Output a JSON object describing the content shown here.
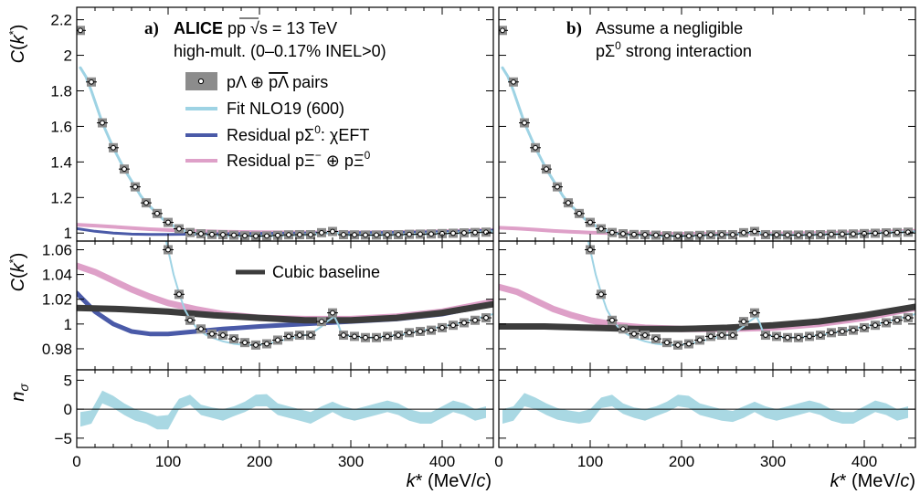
{
  "chart_data": {
    "type": "line",
    "x_axis": {
      "label": "k* (MeV/c)",
      "label_parts": [
        "k",
        "*",
        " (MeV/",
        "c",
        ")"
      ],
      "range": [
        0,
        456
      ],
      "ticks": [
        0,
        100,
        200,
        300,
        400
      ]
    },
    "panel_labels": {
      "a": {
        "letter": "a)",
        "line1_bold": "ALICE",
        "line1_rest": " pp ",
        "sqrt_s": "√s",
        "energy": " = 13 TeV",
        "line2": "high-mult. (0–0.17% INEL>0)"
      },
      "b": {
        "letter": "b)",
        "line1": "Assume a negligible",
        "line2_pre": "pΣ",
        "line2_sup": "0",
        "line2_post": " strong interaction"
      }
    },
    "legend": {
      "data": {
        "label": "pΛ ⊕ pΛ pairs",
        "prefix": "pΛ ⊕ ",
        "bar": "pΛ",
        "suffix": " pairs"
      },
      "fit": {
        "label": "Fit NLO19 (600)"
      },
      "res_sigma": {
        "label": "Residual pΣ0: χEFT",
        "pre": "Residual pΣ",
        "sup": "0",
        "post": ": χEFT"
      },
      "res_xi": {
        "label": "Residual pΞ− ⊕ pΞ0",
        "pre": "Residual pΞ",
        "sup1": "−",
        "mid": " ⊕ pΞ",
        "sup2": "0"
      },
      "baseline": {
        "label": "Cubic baseline"
      }
    },
    "colors": {
      "fit": "#9ed3e4",
      "res_sigma": "#4a5aa8",
      "res_xi": "#dea0c8",
      "baseline": "#3c3c3c",
      "sys_box": "#8c8c8c",
      "nsigma_band": "#a9d8e3"
    },
    "rows": {
      "top": {
        "ylabel": "C(k*)",
        "ylabel_parts": [
          "C",
          "(",
          "k",
          "*",
          ")"
        ],
        "ylim": [
          0.955,
          2.27
        ],
        "ytick_values": [
          1,
          1.2,
          1.4,
          1.6,
          1.8,
          2,
          2.2
        ],
        "ytick_labels": [
          "1",
          "1.2",
          "1.4",
          "1.6",
          "1.8",
          "2",
          "2.2"
        ]
      },
      "mid": {
        "ylabel": "C(k*)",
        "ylabel_parts": [
          "C",
          "(",
          "k",
          "*",
          ")"
        ],
        "ylim": [
          0.963,
          1.067
        ],
        "ytick_values": [
          0.98,
          1,
          1.02,
          1.04,
          1.06
        ],
        "ytick_labels": [
          "0.98",
          "1",
          "1.02",
          "1.04",
          "1.06"
        ]
      },
      "bot": {
        "ylabel": "nσ",
        "ylabel_parts": [
          "n",
          "σ"
        ],
        "ylim": [
          -6.6,
          6.8
        ],
        "ytick_values": [
          -5,
          0,
          5
        ],
        "ytick_labels": [
          "−5",
          "0",
          "5"
        ]
      }
    },
    "data_points": {
      "x": [
        4,
        16,
        28,
        40,
        52,
        64,
        76,
        88,
        100,
        112,
        124,
        136,
        148,
        160,
        172,
        184,
        196,
        208,
        220,
        232,
        244,
        256,
        268,
        280,
        292,
        304,
        316,
        328,
        340,
        352,
        364,
        376,
        388,
        400,
        412,
        424,
        436,
        448
      ],
      "y": [
        2.14,
        1.85,
        1.62,
        1.48,
        1.36,
        1.26,
        1.17,
        1.11,
        1.06,
        1.024,
        1.003,
        0.996,
        0.992,
        0.991,
        0.988,
        0.985,
        0.983,
        0.984,
        0.987,
        0.99,
        0.991,
        0.991,
        1.002,
        1.009,
        0.991,
        0.99,
        0.989,
        0.989,
        0.99,
        0.991,
        0.993,
        0.994,
        0.995,
        0.997,
        0.999,
        1.001,
        1.003,
        1.005
      ]
    },
    "fit_curve": {
      "x": [
        4,
        10,
        16,
        22,
        28,
        34,
        40,
        46,
        52,
        58,
        64,
        70,
        76,
        82,
        88,
        94,
        100,
        106,
        112,
        118,
        124,
        130,
        136,
        142,
        148,
        160,
        172,
        184,
        196,
        208,
        220,
        232,
        244,
        256,
        268,
        272,
        278,
        282,
        286,
        290,
        300,
        320,
        340,
        360,
        380,
        400,
        420,
        440,
        456
      ],
      "y": [
        1.93,
        1.88,
        1.8,
        1.71,
        1.62,
        1.55,
        1.48,
        1.42,
        1.36,
        1.31,
        1.26,
        1.21,
        1.17,
        1.14,
        1.11,
        1.08,
        1.06,
        1.04,
        1.025,
        1.012,
        1.004,
        0.998,
        0.994,
        0.991,
        0.989,
        0.986,
        0.984,
        0.983,
        0.983,
        0.984,
        0.986,
        0.988,
        0.99,
        0.992,
        0.998,
        1.001,
        1.004,
        1.006,
        1.0,
        0.992,
        0.99,
        0.989,
        0.99,
        0.992,
        0.995,
        0.998,
        1.001,
        1.005,
        1.008
      ]
    },
    "panels": {
      "a": {
        "res_sigma": {
          "x": [
            0,
            20,
            40,
            60,
            80,
            100,
            130,
            160,
            200,
            250,
            300,
            350,
            400,
            456
          ],
          "y": [
            1.025,
            1.01,
            1.0,
            0.994,
            0.992,
            0.992,
            0.994,
            0.996,
            0.998,
            1.0,
            1.002,
            1.004,
            1.008,
            1.016
          ]
        },
        "res_xi": {
          "x": [
            0,
            20,
            40,
            60,
            80,
            100,
            130,
            160,
            200,
            250,
            300,
            350,
            400,
            456
          ],
          "y": [
            1.047,
            1.042,
            1.035,
            1.028,
            1.022,
            1.017,
            1.012,
            1.008,
            1.005,
            1.004,
            1.004,
            1.006,
            1.01,
            1.018
          ]
        },
        "baseline": {
          "x": [
            0,
            50,
            100,
            150,
            200,
            250,
            300,
            350,
            400,
            456
          ],
          "y": [
            1.013,
            1.012,
            1.01,
            1.007,
            1.005,
            1.003,
            1.003,
            1.005,
            1.009,
            1.016
          ]
        },
        "nsigma": {
          "x": [
            4,
            16,
            28,
            40,
            52,
            64,
            76,
            88,
            100,
            112,
            124,
            136,
            148,
            160,
            172,
            184,
            196,
            208,
            220,
            232,
            244,
            256,
            268,
            280,
            292,
            304,
            316,
            328,
            340,
            352,
            364,
            376,
            388,
            400,
            412,
            424,
            436,
            448
          ],
          "lo": [
            -3.0,
            -2.5,
            1.0,
            0.2,
            -1.0,
            -2.0,
            -2.5,
            -3.5,
            -3.5,
            0.0,
            0.8,
            -1.0,
            -1.5,
            -2.0,
            -1.2,
            -0.5,
            0.5,
            0.5,
            -1.0,
            -1.5,
            -2.0,
            -2.5,
            -1.5,
            -0.5,
            -1.5,
            -2.0,
            -1.5,
            -1.0,
            -0.5,
            -1.0,
            -2.0,
            -2.5,
            -2.5,
            -1.5,
            -0.5,
            -1.0,
            -2.0,
            -1.5
          ],
          "hi": [
            -0.5,
            -0.2,
            3.2,
            2.3,
            1.0,
            0.0,
            -0.5,
            -1.2,
            -1.0,
            1.8,
            2.5,
            0.8,
            0.3,
            0.0,
            0.5,
            1.3,
            2.5,
            2.6,
            1.0,
            0.5,
            0.0,
            -0.5,
            0.5,
            1.3,
            0.5,
            0.0,
            0.5,
            1.0,
            1.5,
            1.0,
            0.0,
            -0.5,
            -0.5,
            0.5,
            1.5,
            1.0,
            0.0,
            0.5
          ]
        }
      },
      "b": {
        "res_xi": {
          "x": [
            0,
            20,
            40,
            60,
            80,
            100,
            130,
            160,
            200,
            250,
            300,
            350,
            400,
            456
          ],
          "y": [
            1.03,
            1.026,
            1.019,
            1.012,
            1.007,
            1.003,
            0.999,
            0.997,
            0.996,
            0.996,
            0.997,
            1.0,
            1.005,
            1.013
          ]
        },
        "baseline": {
          "x": [
            0,
            50,
            100,
            150,
            200,
            250,
            300,
            350,
            400,
            456
          ],
          "y": [
            0.998,
            0.998,
            0.997,
            0.996,
            0.996,
            0.997,
            0.999,
            1.002,
            1.007,
            1.014
          ]
        },
        "nsigma": {
          "x": [
            4,
            16,
            28,
            40,
            52,
            64,
            76,
            88,
            100,
            112,
            124,
            136,
            148,
            160,
            172,
            184,
            196,
            208,
            220,
            232,
            244,
            256,
            268,
            280,
            292,
            304,
            316,
            328,
            340,
            352,
            364,
            376,
            388,
            400,
            412,
            424,
            436,
            448
          ],
          "lo": [
            -2.5,
            -2.0,
            0.5,
            0.0,
            -1.0,
            -1.8,
            -2.2,
            -2.5,
            -2.2,
            0.2,
            0.5,
            -0.8,
            -1.5,
            -2.0,
            -1.2,
            -0.5,
            0.5,
            0.2,
            -1.0,
            -1.5,
            -2.0,
            -2.2,
            -1.5,
            -0.5,
            -1.5,
            -2.0,
            -1.5,
            -1.0,
            -0.5,
            -1.0,
            -2.0,
            -2.5,
            -2.5,
            -1.5,
            -0.5,
            -1.0,
            -2.0,
            -1.5
          ],
          "hi": [
            0.0,
            0.5,
            2.8,
            2.0,
            1.0,
            0.2,
            -0.2,
            -0.5,
            0.0,
            2.0,
            2.5,
            1.0,
            0.3,
            0.0,
            0.5,
            1.3,
            2.5,
            2.3,
            1.0,
            0.5,
            0.0,
            -0.3,
            0.5,
            1.3,
            0.5,
            0.0,
            0.5,
            1.0,
            1.5,
            1.0,
            0.0,
            -0.5,
            -0.5,
            0.5,
            1.5,
            1.0,
            0.0,
            0.5
          ]
        }
      }
    }
  }
}
